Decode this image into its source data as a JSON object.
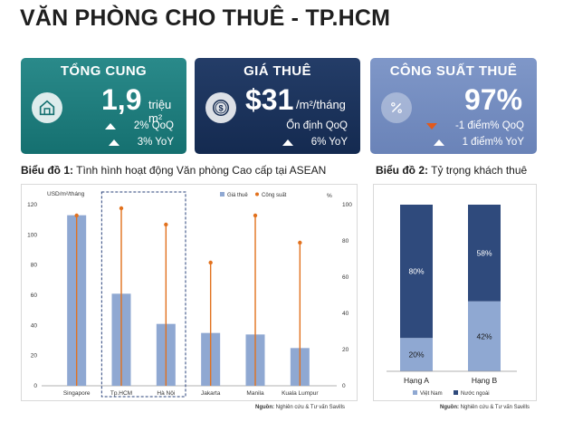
{
  "page": {
    "title": "VĂN PHÒNG CHO THUÊ - TP.HCM"
  },
  "cards": [
    {
      "title": "TỔNG CUNG",
      "value": "1,9",
      "unit": "triệu m²",
      "lines": [
        {
          "direction": "up",
          "text": "2% QoQ"
        },
        {
          "direction": "up",
          "text": "3% YoY"
        }
      ]
    },
    {
      "title": "GIÁ THUÊ",
      "value": "$31",
      "unit": "/m²/tháng",
      "lines": [
        {
          "direction": "none",
          "text": "Ổn định QoQ"
        },
        {
          "direction": "up",
          "text": "6% YoY"
        }
      ]
    },
    {
      "title": "CÔNG SUẤT THUÊ",
      "value": "97%",
      "unit": "",
      "lines": [
        {
          "direction": "down",
          "text": "-1 điểm% QoQ"
        },
        {
          "direction": "up",
          "text": "1 điểm% YoY"
        }
      ]
    }
  ],
  "colors": {
    "teal": "#157070",
    "navy": "#142a50",
    "blue": "#6a83b8",
    "bar_light": "#8fa8d2",
    "bar_dark": "#2f4a7c",
    "marker": "#e2711d"
  },
  "chart1": {
    "caption_bold": "Biểu đồ 1:",
    "caption_text": " Tình hình hoạt động Văn phòng Cao cấp tại ASEAN",
    "source_bold": "Nguồn:",
    "source_text": " Nghiên cứu & Tư vấn Savills"
  },
  "chart2": {
    "caption_bold": "Biểu đồ 2:",
    "caption_text": " Tỷ trọng khách thuê",
    "source_bold": "Nguồn:",
    "source_text": " Nghiên cứu & Tư vấn Savills"
  },
  "chart_data": [
    {
      "type": "bar",
      "title": "Tình hình hoạt động Văn phòng Cao cấp tại ASEAN",
      "categories": [
        "Singapore",
        "Tp.HCM",
        "Hà Nội",
        "Jakarta",
        "Manila",
        "Kuala Lumpur"
      ],
      "series": [
        {
          "name": "Giá thuê",
          "axis": "left",
          "kind": "bar",
          "values": [
            113,
            61,
            41,
            35,
            34,
            25
          ]
        },
        {
          "name": "Công suất",
          "axis": "right",
          "kind": "lollipop",
          "values": [
            94,
            98,
            89,
            68,
            94,
            79
          ]
        }
      ],
      "ylabel_left": "USD/m²/tháng",
      "ylabel_right": "%",
      "ylim_left": [
        0,
        120
      ],
      "ylim_right": [
        0,
        100
      ],
      "yticks_left": [
        0,
        20,
        40,
        60,
        80,
        100,
        120
      ],
      "yticks_right": [
        0,
        20,
        40,
        60,
        80,
        100
      ],
      "highlight": [
        "Tp.HCM",
        "Hà Nội"
      ],
      "legend": [
        "Giá thuê",
        "Công suất"
      ],
      "legend_position": "top-right"
    },
    {
      "type": "bar",
      "stacked": true,
      "title": "Tỷ trọng khách thuê",
      "categories": [
        "Hạng A",
        "Hạng B"
      ],
      "series": [
        {
          "name": "Việt Nam",
          "values": [
            20,
            42
          ],
          "labels": [
            "20%",
            "42%"
          ]
        },
        {
          "name": "Nước ngoài",
          "values": [
            80,
            58
          ],
          "labels": [
            "80%",
            "58%"
          ]
        }
      ],
      "ylim": [
        0,
        100
      ],
      "legend": [
        "Việt Nam",
        "Nước ngoài"
      ],
      "legend_position": "bottom"
    }
  ]
}
